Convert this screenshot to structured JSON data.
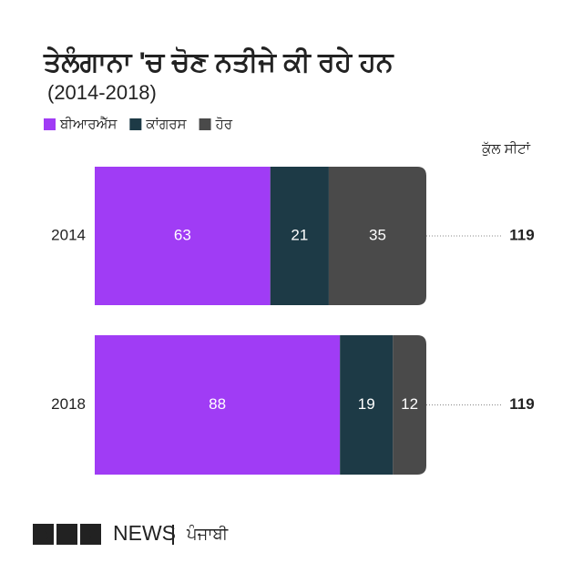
{
  "chart_data": {
    "type": "stacked-barh",
    "title": "ਤੇਲੰਗਾਨਾ 'ਚ ਚੋਣ ਨਤੀਜੇ ਕੀ ਰਹੇ ਹਨ",
    "subtitle": "(2014-2018)",
    "categories": [
      "2014",
      "2018"
    ],
    "series": [
      {
        "name": "ਬੀਆਰਐੱਸ",
        "color": "#a03cf5",
        "values": [
          63,
          88
        ]
      },
      {
        "name": "ਕਾਂਗਰਸ",
        "color": "#1d3a46",
        "values": [
          21,
          19
        ]
      },
      {
        "name": "ਹੋਰ",
        "color": "#4a4a4a",
        "values": [
          35,
          12
        ]
      }
    ],
    "xlim": [
      0,
      119
    ],
    "totals_label": "ਕੁੱਲ ਸੀਟਾਂ",
    "totals": [
      119,
      119
    ]
  },
  "footer": {
    "brand": "BBC",
    "news": "NEWS",
    "language": "ਪੰਜਾਬੀ"
  }
}
